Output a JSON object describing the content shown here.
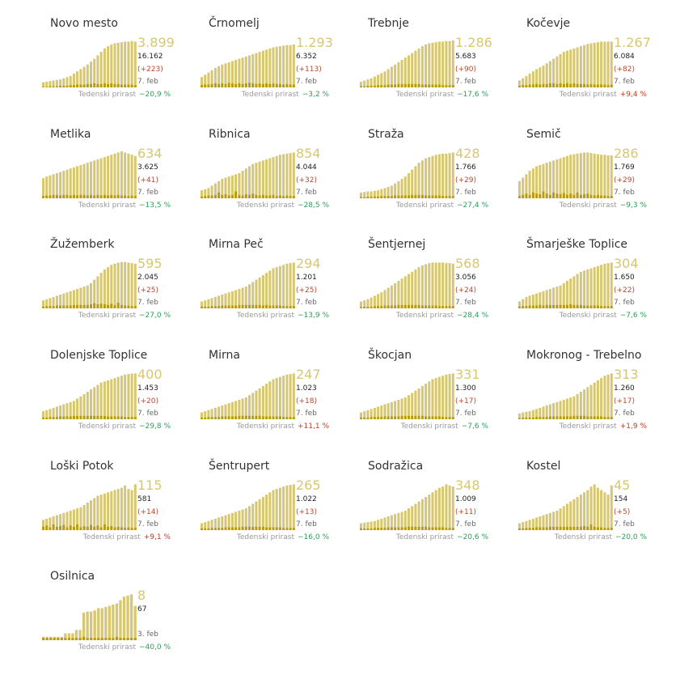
{
  "growth_label": "Tedenski prirast",
  "colors": {
    "active": "#d7c770",
    "cases": "#b89c0a",
    "pos": "#c03a22",
    "neg": "#2e9e5b"
  },
  "chart_data": [
    {
      "type": "bar",
      "name": "Novo mesto",
      "active": "3.899",
      "total": "16.162",
      "delta": "(+223)",
      "date": "7. feb",
      "growth": "−20,9 %",
      "growth_dir": "neg",
      "active_series": [
        9,
        10,
        11,
        12,
        13,
        14,
        16,
        18,
        20,
        24,
        28,
        32,
        36,
        40,
        45,
        50,
        56,
        62,
        68,
        72,
        75,
        77,
        78,
        79,
        80,
        80,
        81,
        80
      ],
      "cases_series": [
        1,
        1,
        2,
        2,
        2,
        3,
        3,
        3,
        4,
        4,
        5,
        5,
        5,
        6,
        6,
        7,
        6,
        6,
        7,
        6,
        7,
        6,
        6,
        5,
        5,
        5,
        5,
        4
      ]
    },
    {
      "type": "bar",
      "name": "Črnomelj",
      "active": "1.293",
      "total": "6.352",
      "delta": "(+113)",
      "date": "7. feb",
      "growth": "−3,2 %",
      "growth_dir": "neg",
      "active_series": [
        18,
        22,
        26,
        30,
        34,
        37,
        40,
        42,
        44,
        46,
        48,
        50,
        52,
        54,
        56,
        58,
        60,
        62,
        64,
        66,
        68,
        70,
        71,
        72,
        73,
        74,
        74,
        75
      ],
      "cases_series": [
        4,
        5,
        5,
        6,
        7,
        6,
        7,
        6,
        8,
        7,
        6,
        7,
        6,
        7,
        8,
        7,
        6,
        7,
        6,
        7,
        6,
        7,
        6,
        6,
        5,
        6,
        5,
        5
      ]
    },
    {
      "type": "bar",
      "name": "Trebnje",
      "active": "1.286",
      "total": "5.683",
      "delta": "(+90)",
      "date": "7. feb",
      "growth": "−17,6 %",
      "growth_dir": "neg",
      "active_series": [
        10,
        12,
        14,
        16,
        19,
        22,
        25,
        28,
        32,
        36,
        40,
        44,
        48,
        52,
        56,
        60,
        64,
        68,
        72,
        75,
        77,
        78,
        79,
        80,
        80,
        81,
        81,
        82
      ],
      "cases_series": [
        2,
        2,
        3,
        3,
        3,
        4,
        4,
        4,
        5,
        5,
        5,
        6,
        6,
        6,
        6,
        6,
        6,
        6,
        5,
        5,
        5,
        5,
        5,
        5,
        4,
        4,
        4,
        4
      ]
    },
    {
      "type": "bar",
      "name": "Kočevje",
      "active": "1.267",
      "total": "6.084",
      "delta": "(+82)",
      "date": "7. feb",
      "growth": "+9,4 %",
      "growth_dir": "pos",
      "active_series": [
        12,
        16,
        20,
        24,
        28,
        32,
        35,
        38,
        42,
        46,
        50,
        54,
        58,
        62,
        64,
        66,
        68,
        70,
        72,
        74,
        76,
        77,
        78,
        79,
        80,
        80,
        80,
        80
      ],
      "cases_series": [
        3,
        4,
        4,
        5,
        5,
        6,
        5,
        6,
        6,
        7,
        7,
        6,
        7,
        6,
        7,
        6,
        7,
        6,
        6,
        6,
        5,
        6,
        5,
        5,
        5,
        5,
        4,
        5
      ]
    },
    {
      "type": "bar",
      "name": "Metlika",
      "active": "634",
      "total": "3.625",
      "delta": "(+41)",
      "date": "7. feb",
      "growth": "−13,5 %",
      "growth_dir": "neg",
      "active_series": [
        35,
        38,
        40,
        42,
        44,
        46,
        48,
        50,
        52,
        54,
        56,
        58,
        60,
        62,
        64,
        66,
        68,
        70,
        72,
        74,
        76,
        78,
        80,
        82,
        80,
        78,
        76,
        74
      ],
      "cases_series": [
        4,
        5,
        5,
        6,
        6,
        5,
        6,
        6,
        5,
        6,
        5,
        6,
        6,
        5,
        6,
        5,
        6,
        5,
        6,
        5,
        6,
        5,
        6,
        5,
        5,
        4,
        5,
        4
      ]
    },
    {
      "type": "bar",
      "name": "Ribnica",
      "active": "854",
      "total": "4.044",
      "delta": "(+32)",
      "date": "7. feb",
      "growth": "−28,5 %",
      "growth_dir": "neg",
      "active_series": [
        14,
        16,
        18,
        22,
        26,
        30,
        34,
        36,
        38,
        40,
        42,
        44,
        48,
        52,
        56,
        60,
        62,
        64,
        66,
        68,
        70,
        72,
        74,
        76,
        77,
        78,
        79,
        80
      ],
      "cases_series": [
        3,
        4,
        5,
        5,
        6,
        10,
        6,
        7,
        5,
        6,
        12,
        6,
        5,
        7,
        6,
        8,
        6,
        5,
        6,
        5,
        5,
        6,
        4,
        5,
        4,
        5,
        4,
        4
      ]
    },
    {
      "type": "bar",
      "name": "Straža",
      "active": "428",
      "total": "1.766",
      "delta": "(+29)",
      "date": "7. feb",
      "growth": "−27,4 %",
      "growth_dir": "neg",
      "active_series": [
        10,
        11,
        12,
        12,
        13,
        14,
        16,
        18,
        20,
        22,
        26,
        30,
        34,
        38,
        44,
        50,
        56,
        62,
        66,
        70,
        72,
        74,
        76,
        77,
        78,
        78,
        79,
        80
      ],
      "cases_series": [
        2,
        2,
        3,
        3,
        3,
        3,
        4,
        4,
        4,
        4,
        5,
        5,
        5,
        5,
        5,
        6,
        6,
        6,
        6,
        5,
        5,
        5,
        5,
        5,
        4,
        4,
        4,
        4
      ]
    },
    {
      "type": "bar",
      "name": "Semič",
      "active": "286",
      "total": "1.769",
      "delta": "(+29)",
      "date": "7. feb",
      "growth": "−9,3 %",
      "growth_dir": "neg",
      "active_series": [
        30,
        36,
        42,
        48,
        52,
        56,
        58,
        60,
        62,
        64,
        66,
        68,
        70,
        72,
        74,
        76,
        77,
        78,
        79,
        80,
        80,
        79,
        78,
        77,
        76,
        76,
        75,
        75
      ],
      "cases_series": [
        4,
        6,
        8,
        6,
        10,
        8,
        7,
        12,
        8,
        6,
        10,
        8,
        7,
        9,
        6,
        8,
        6,
        10,
        6,
        7,
        8,
        6,
        5,
        6,
        5,
        5,
        4,
        4
      ]
    },
    {
      "type": "bar",
      "name": "Žužemberk",
      "active": "595",
      "total": "2.045",
      "delta": "(+25)",
      "date": "7. feb",
      "growth": "−27,0 %",
      "growth_dir": "neg",
      "active_series": [
        14,
        16,
        18,
        20,
        22,
        24,
        26,
        28,
        30,
        32,
        34,
        36,
        38,
        40,
        44,
        50,
        56,
        62,
        68,
        72,
        76,
        78,
        80,
        81,
        81,
        80,
        79,
        78
      ],
      "cases_series": [
        3,
        4,
        4,
        4,
        5,
        5,
        5,
        5,
        5,
        6,
        6,
        6,
        6,
        6,
        7,
        9,
        7,
        8,
        7,
        6,
        8,
        6,
        10,
        6,
        5,
        5,
        4,
        4
      ]
    },
    {
      "type": "bar",
      "name": "Mirna Peč",
      "active": "294",
      "total": "1.201",
      "delta": "(+25)",
      "date": "7. feb",
      "growth": "−13,9 %",
      "growth_dir": "neg",
      "active_series": [
        12,
        14,
        16,
        18,
        20,
        22,
        24,
        26,
        28,
        30,
        32,
        34,
        36,
        38,
        42,
        46,
        50,
        54,
        58,
        62,
        66,
        70,
        72,
        74,
        76,
        78,
        79,
        80
      ],
      "cases_series": [
        3,
        3,
        3,
        4,
        4,
        4,
        5,
        5,
        5,
        5,
        5,
        6,
        6,
        6,
        6,
        6,
        6,
        6,
        5,
        6,
        5,
        5,
        5,
        5,
        4,
        4,
        4,
        4
      ]
    },
    {
      "type": "bar",
      "name": "Šentjernej",
      "active": "568",
      "total": "3.056",
      "delta": "(+24)",
      "date": "7. feb",
      "growth": "−28,4 %",
      "growth_dir": "neg",
      "active_series": [
        12,
        14,
        16,
        19,
        22,
        25,
        28,
        32,
        36,
        40,
        44,
        48,
        52,
        56,
        60,
        64,
        68,
        72,
        75,
        77,
        79,
        80,
        80,
        80,
        80,
        79,
        79,
        78
      ],
      "cases_series": [
        2,
        3,
        3,
        3,
        4,
        4,
        4,
        5,
        5,
        5,
        5,
        6,
        6,
        6,
        6,
        6,
        6,
        6,
        5,
        5,
        5,
        5,
        5,
        4,
        4,
        4,
        4,
        4
      ]
    },
    {
      "type": "bar",
      "name": "Šmarješke Toplice",
      "active": "304",
      "total": "1.650",
      "delta": "(+22)",
      "date": "7. feb",
      "growth": "−7,6 %",
      "growth_dir": "neg",
      "active_series": [
        12,
        16,
        20,
        22,
        24,
        26,
        28,
        30,
        32,
        34,
        36,
        38,
        40,
        44,
        48,
        52,
        56,
        60,
        64,
        66,
        68,
        70,
        72,
        74,
        76,
        78,
        79,
        80
      ],
      "cases_series": [
        3,
        4,
        4,
        5,
        5,
        5,
        6,
        5,
        6,
        6,
        6,
        6,
        6,
        6,
        6,
        7,
        6,
        6,
        6,
        5,
        5,
        5,
        5,
        5,
        4,
        4,
        4,
        4
      ]
    },
    {
      "type": "bar",
      "name": "Dolenjske Toplice",
      "active": "400",
      "total": "1.453",
      "delta": "(+20)",
      "date": "7. feb",
      "growth": "−29,8 %",
      "growth_dir": "neg",
      "active_series": [
        14,
        16,
        18,
        20,
        22,
        24,
        26,
        28,
        30,
        32,
        36,
        40,
        44,
        48,
        52,
        56,
        60,
        64,
        66,
        68,
        70,
        72,
        74,
        76,
        78,
        79,
        80,
        80
      ],
      "cases_series": [
        3,
        3,
        4,
        4,
        4,
        5,
        5,
        5,
        5,
        6,
        6,
        6,
        6,
        6,
        6,
        6,
        6,
        6,
        6,
        5,
        5,
        5,
        5,
        5,
        4,
        4,
        4,
        4
      ]
    },
    {
      "type": "bar",
      "name": "Mirna",
      "active": "247",
      "total": "1.023",
      "delta": "(+18)",
      "date": "7. feb",
      "growth": "+11,1 %",
      "growth_dir": "pos",
      "active_series": [
        12,
        14,
        16,
        18,
        20,
        22,
        24,
        26,
        28,
        30,
        32,
        34,
        36,
        38,
        42,
        46,
        50,
        54,
        58,
        62,
        66,
        70,
        72,
        74,
        76,
        78,
        79,
        80
      ],
      "cases_series": [
        3,
        3,
        4,
        4,
        4,
        4,
        5,
        5,
        5,
        5,
        5,
        6,
        6,
        6,
        6,
        6,
        6,
        6,
        5,
        5,
        5,
        5,
        5,
        5,
        4,
        4,
        4,
        4
      ]
    },
    {
      "type": "bar",
      "name": "Škocjan",
      "active": "331",
      "total": "1.300",
      "delta": "(+17)",
      "date": "7. feb",
      "growth": "−7,6 %",
      "growth_dir": "neg",
      "active_series": [
        12,
        14,
        16,
        18,
        20,
        22,
        24,
        26,
        28,
        30,
        32,
        34,
        36,
        38,
        42,
        46,
        50,
        54,
        58,
        62,
        66,
        70,
        72,
        74,
        76,
        78,
        79,
        80
      ],
      "cases_series": [
        3,
        3,
        3,
        4,
        4,
        4,
        4,
        5,
        5,
        5,
        5,
        5,
        6,
        6,
        6,
        6,
        6,
        6,
        6,
        5,
        5,
        5,
        5,
        5,
        4,
        4,
        4,
        4
      ]
    },
    {
      "type": "bar",
      "name": "Mokronog - Trebelno",
      "active": "313",
      "total": "1.260",
      "delta": "(+17)",
      "date": "7. feb",
      "growth": "+1,9 %",
      "growth_dir": "pos",
      "active_series": [
        10,
        12,
        13,
        14,
        16,
        18,
        20,
        22,
        24,
        26,
        28,
        30,
        32,
        34,
        36,
        38,
        40,
        44,
        48,
        52,
        56,
        60,
        64,
        68,
        72,
        76,
        78,
        80
      ],
      "cases_series": [
        2,
        3,
        3,
        3,
        3,
        4,
        4,
        4,
        4,
        5,
        5,
        5,
        5,
        5,
        5,
        5,
        6,
        6,
        6,
        6,
        5,
        5,
        5,
        5,
        5,
        4,
        4,
        4
      ]
    },
    {
      "type": "bar",
      "name": "Loški Potok",
      "active": "115",
      "total": "581",
      "delta": "(+14)",
      "date": "7. feb",
      "growth": "+9,1 %",
      "growth_dir": "pos",
      "active_series": [
        18,
        20,
        22,
        24,
        26,
        28,
        30,
        32,
        34,
        36,
        38,
        40,
        44,
        48,
        52,
        56,
        60,
        62,
        64,
        66,
        68,
        70,
        72,
        74,
        78,
        72,
        70,
        80
      ],
      "cases_series": [
        6,
        8,
        5,
        10,
        6,
        7,
        9,
        5,
        8,
        6,
        10,
        5,
        7,
        6,
        9,
        6,
        8,
        5,
        10,
        6,
        7,
        5,
        6,
        5,
        4,
        5,
        4,
        4
      ]
    },
    {
      "type": "bar",
      "name": "Šentrupert",
      "active": "265",
      "total": "1.022",
      "delta": "(+13)",
      "date": "7. feb",
      "growth": "−16,0 %",
      "growth_dir": "neg",
      "active_series": [
        12,
        14,
        16,
        18,
        20,
        22,
        24,
        26,
        28,
        30,
        32,
        34,
        36,
        38,
        42,
        46,
        50,
        54,
        58,
        62,
        66,
        70,
        72,
        74,
        76,
        78,
        79,
        80
      ],
      "cases_series": [
        3,
        3,
        3,
        4,
        4,
        4,
        4,
        5,
        5,
        5,
        5,
        5,
        6,
        6,
        6,
        6,
        6,
        6,
        6,
        5,
        5,
        5,
        5,
        5,
        4,
        4,
        4,
        4
      ]
    },
    {
      "type": "bar",
      "name": "Sodražica",
      "active": "348",
      "total": "1.009",
      "delta": "(+11)",
      "date": "7. feb",
      "growth": "−20,6 %",
      "growth_dir": "neg",
      "active_series": [
        12,
        13,
        14,
        15,
        16,
        18,
        20,
        22,
        24,
        26,
        28,
        30,
        32,
        34,
        38,
        42,
        46,
        50,
        54,
        58,
        62,
        66,
        70,
        74,
        76,
        80,
        78,
        76
      ],
      "cases_series": [
        3,
        3,
        3,
        3,
        4,
        4,
        4,
        4,
        5,
        5,
        5,
        5,
        5,
        5,
        6,
        6,
        6,
        6,
        6,
        6,
        5,
        5,
        5,
        5,
        5,
        4,
        4,
        4
      ]
    },
    {
      "type": "bar",
      "name": "Kostel",
      "active": "45",
      "total": "154",
      "delta": "(+5)",
      "date": "7. feb",
      "growth": "−20,0 %",
      "growth_dir": "neg",
      "active_series": [
        12,
        14,
        16,
        18,
        20,
        22,
        24,
        26,
        28,
        30,
        32,
        34,
        38,
        42,
        46,
        50,
        54,
        58,
        62,
        66,
        70,
        76,
        80,
        74,
        70,
        66,
        62,
        78
      ],
      "cases_series": [
        3,
        3,
        4,
        4,
        4,
        5,
        5,
        5,
        5,
        6,
        6,
        6,
        6,
        6,
        6,
        6,
        6,
        6,
        6,
        7,
        6,
        10,
        6,
        5,
        5,
        4,
        4,
        4
      ]
    },
    {
      "type": "bar",
      "name": "Osilnica",
      "active": "8",
      "total": "67",
      "delta": "",
      "date": "3. feb",
      "growth": "−40,0 %",
      "growth_dir": "neg",
      "active_series": [
        6,
        6,
        6,
        6,
        6,
        6,
        12,
        12,
        12,
        18,
        18,
        48,
        50,
        50,
        52,
        56,
        56,
        58,
        60,
        62,
        64,
        70,
        76,
        78,
        80,
        60
      ],
      "cases_series": [
        4,
        4,
        4,
        4,
        4,
        4,
        4,
        4,
        4,
        4,
        4,
        6,
        4,
        4,
        4,
        4,
        4,
        4,
        4,
        4,
        6,
        4,
        4,
        4,
        4,
        4
      ]
    }
  ]
}
